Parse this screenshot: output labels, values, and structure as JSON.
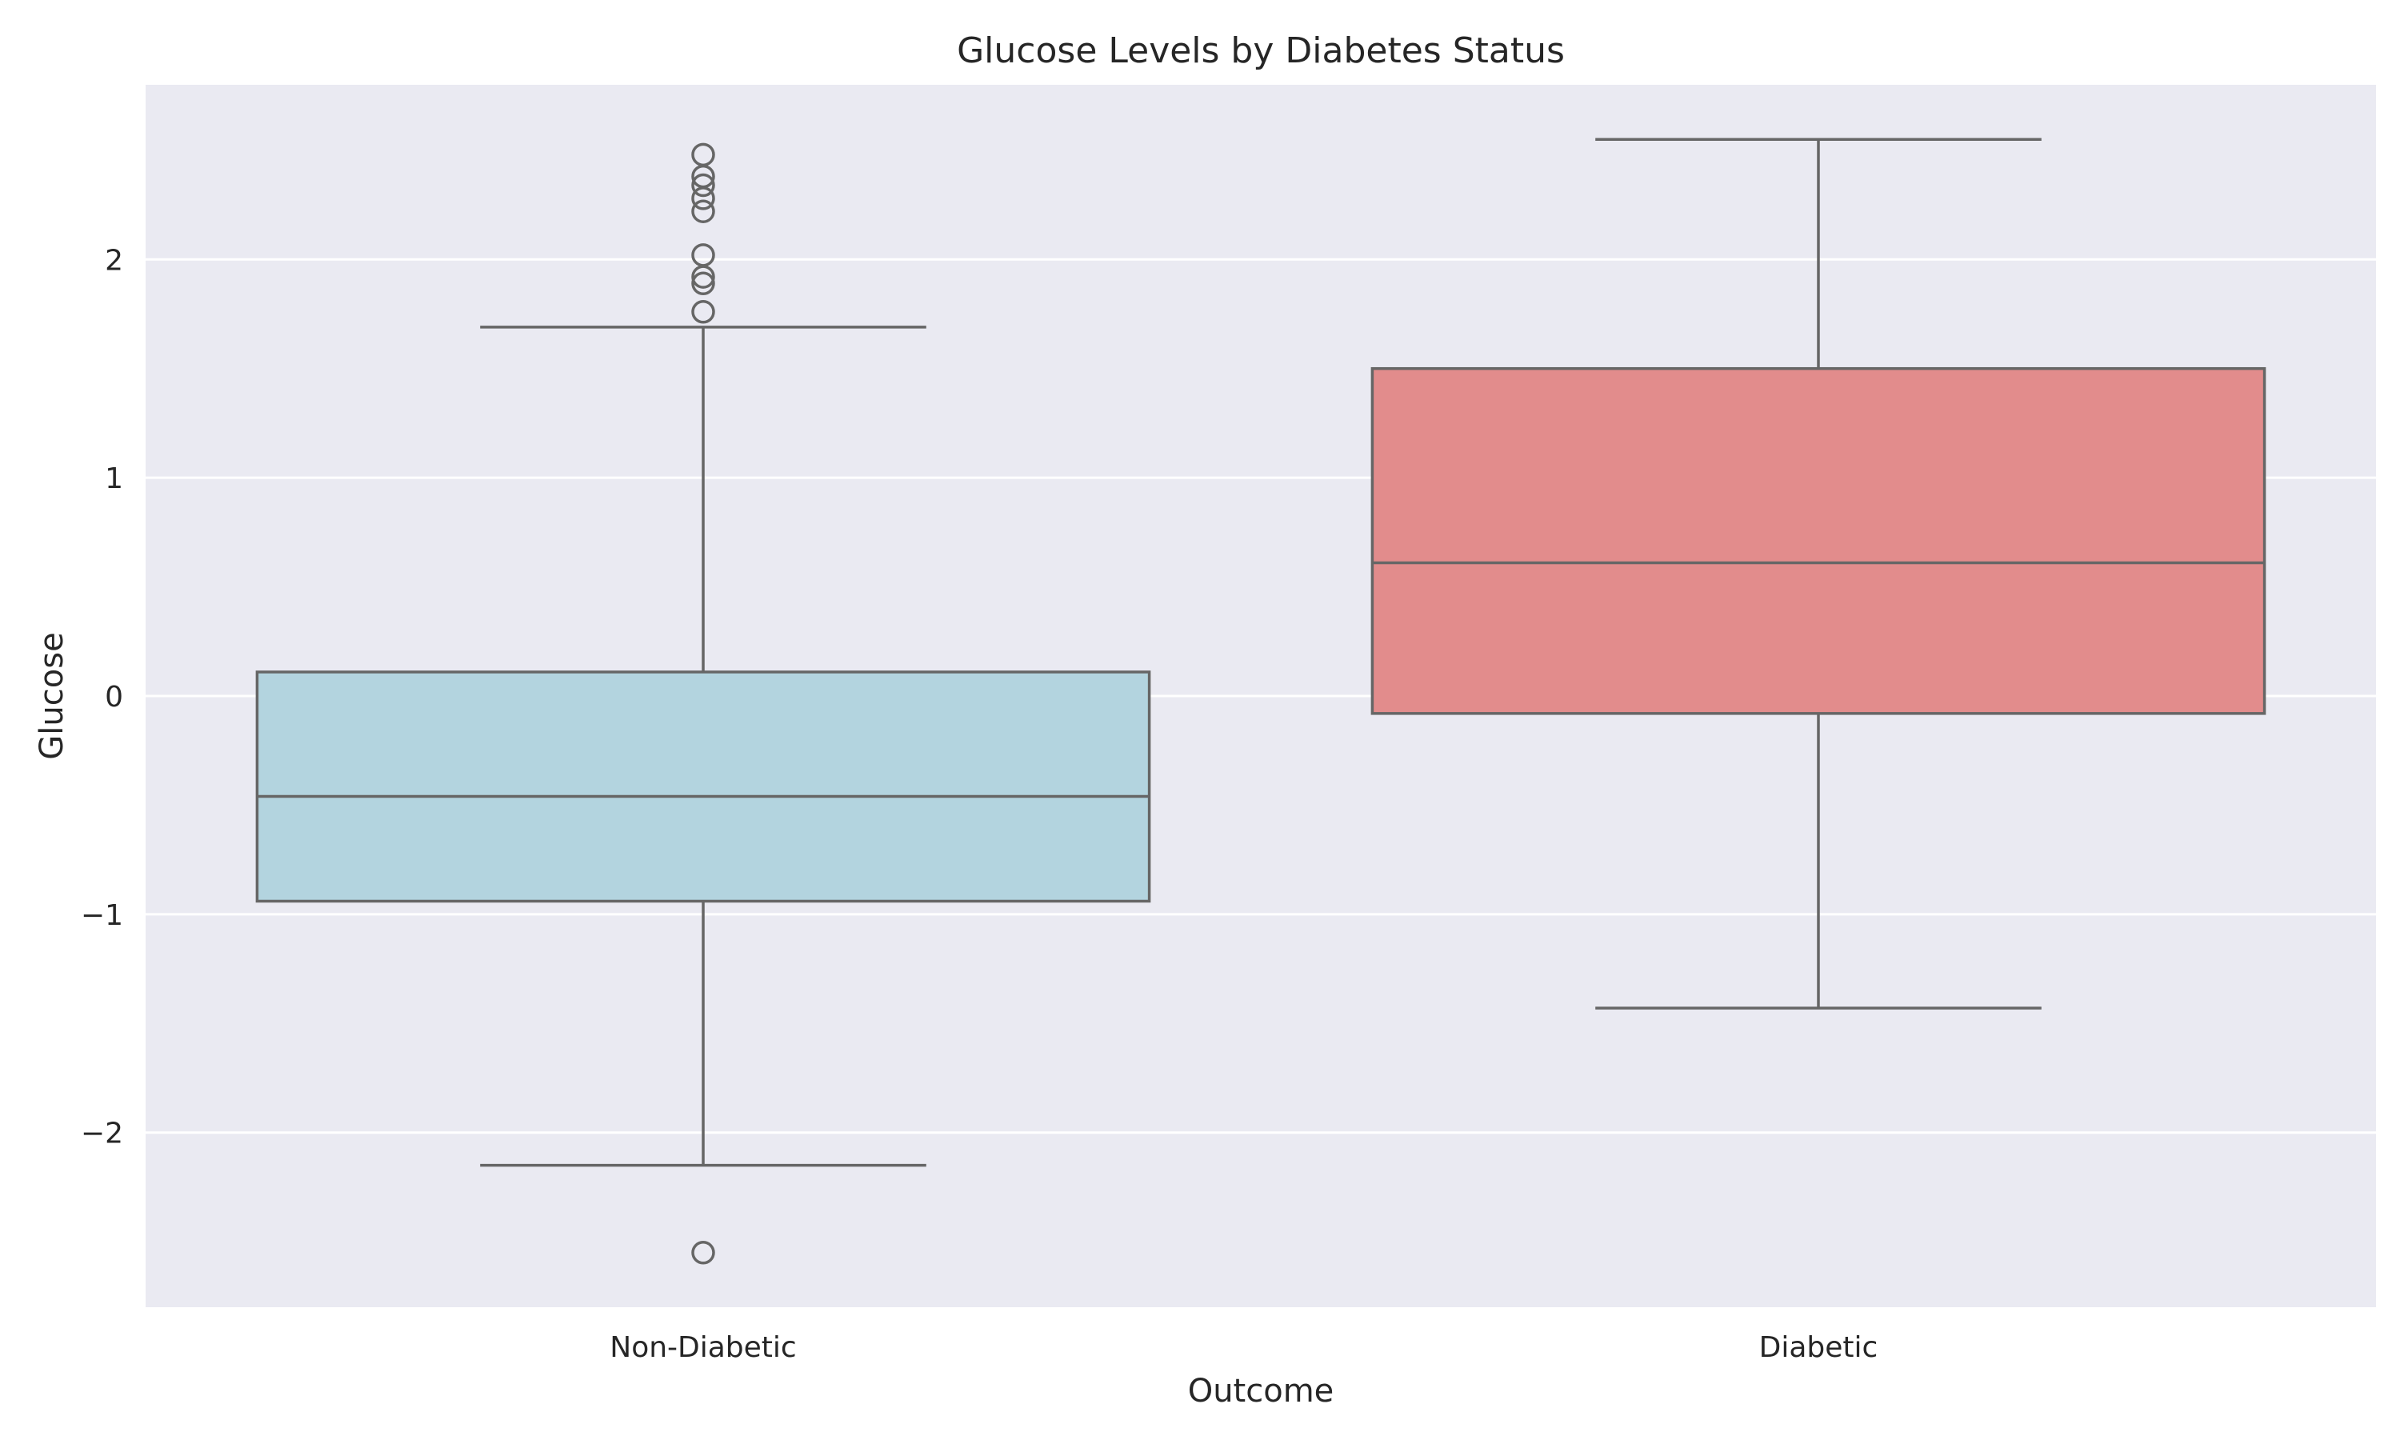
{
  "chart_data": {
    "type": "boxplot",
    "title": "Glucose Levels by Diabetes Status",
    "xlabel": "Outcome",
    "ylabel": "Glucose",
    "ylim": [
      -2.8,
      2.8
    ],
    "yticks": [
      -2,
      -1,
      0,
      1,
      2
    ],
    "ytick_labels": [
      "−2",
      "−1",
      "0",
      "1",
      "2"
    ],
    "grid": true,
    "categories": [
      "Non-Diabetic",
      "Diabetic"
    ],
    "boxes": [
      {
        "category": "Non-Diabetic",
        "whisker_low": -2.15,
        "q1": -0.94,
        "median": -0.46,
        "q3": 0.11,
        "whisker_high": 1.69,
        "outliers": [
          2.48,
          2.38,
          2.34,
          2.28,
          2.22,
          2.02,
          1.92,
          1.89,
          1.76,
          -2.55
        ]
      },
      {
        "category": "Diabetic",
        "whisker_low": -1.43,
        "q1": -0.08,
        "median": 0.61,
        "q3": 1.5,
        "whisker_high": 2.55,
        "outliers": []
      }
    ],
    "colors": {
      "plot_background": "#eaeaf2",
      "grid": "#ffffff",
      "box_line": "#666666",
      "box_fills": [
        "#b3d4df",
        "#e28c8c"
      ]
    }
  }
}
